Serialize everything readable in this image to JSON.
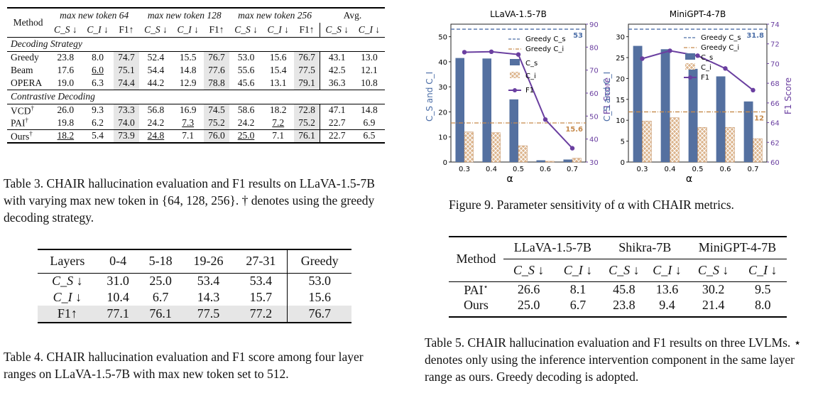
{
  "table3": {
    "header": {
      "method": "Method",
      "groups": [
        "max new token 64",
        "max new token 128",
        "max new token 256",
        "Avg."
      ],
      "cols": [
        "C_S ↓",
        "C_I ↓",
        "F1↑",
        "C_S ↓",
        "C_I ↓",
        "F1↑",
        "C_S ↓",
        "C_I ↓",
        "F1↑",
        "C_S ↓",
        "C_I ↓"
      ]
    },
    "sections": [
      {
        "title": "Decoding Strategy",
        "rows": [
          {
            "method": "Greedy",
            "sup": "",
            "vals": [
              "23.8",
              "8.0",
              "74.7",
              "52.4",
              "15.5",
              "76.7",
              "53.0",
              "15.6",
              "76.7",
              "43.1",
              "13.0"
            ]
          },
          {
            "method": "Beam",
            "sup": "",
            "vals": [
              "17.6",
              "6.0",
              "75.1",
              "54.4",
              "14.8",
              "77.6",
              "55.6",
              "15.4",
              "77.5",
              "42.5",
              "12.1"
            ]
          },
          {
            "method": "OPERA",
            "sup": "",
            "vals": [
              "19.0",
              "6.3",
              "74.4",
              "44.2",
              "12.9",
              "78.8",
              "45.6",
              "13.1",
              "79.1",
              "36.3",
              "10.8"
            ]
          }
        ]
      },
      {
        "title": "Contrastive Decoding",
        "rows": [
          {
            "method": "VCD",
            "sup": "†",
            "vals": [
              "26.0",
              "9.3",
              "73.3",
              "56.8",
              "16.9",
              "74.5",
              "58.6",
              "18.2",
              "72.8",
              "47.1",
              "14.8"
            ]
          },
          {
            "method": "PAI",
            "sup": "†",
            "vals": [
              "19.8",
              "6.2",
              "74.0",
              "24.2",
              "7.3",
              "75.2",
              "24.2",
              "7.2",
              "75.2",
              "22.7",
              "6.9"
            ]
          }
        ]
      }
    ],
    "ours": {
      "method": "Ours",
      "sup": "†",
      "vals": [
        "18.2",
        "5.4",
        "73.9",
        "24.8",
        "7.1",
        "76.0",
        "25.0",
        "7.1",
        "76.1",
        "22.7",
        "6.5"
      ]
    },
    "caption": "Table 3.  CHAIR hallucination evaluation and F1 results on LLaVA-1.5-7B with varying max new token in {64, 128, 256}. † denotes using the greedy decoding strategy."
  },
  "table4": {
    "header": [
      "Layers",
      "0-4",
      "5-18",
      "19-26",
      "27-31",
      "Greedy"
    ],
    "rows": [
      {
        "label": "C_S ↓",
        "vals": [
          "31.0",
          "25.0",
          "53.4",
          "53.4",
          "53.0"
        ]
      },
      {
        "label": "C_I ↓",
        "vals": [
          "10.4",
          "6.7",
          "14.3",
          "15.7",
          "15.6"
        ]
      },
      {
        "label": "F1↑",
        "vals": [
          "77.1",
          "76.1",
          "77.5",
          "77.2",
          "76.7"
        ]
      }
    ],
    "caption": "Table 4. CHAIR hallucination evaluation and F1 score among four layer ranges on LLaVA-1.5-7B with max new token set to 512."
  },
  "figure9": {
    "caption": "Figure 9. Parameter sensitivity of α with CHAIR metrics.",
    "legend": [
      "Greedy C_s",
      "Greedy C_i",
      "C_s",
      "C_i",
      "F1"
    ]
  },
  "table5": {
    "header": {
      "method": "Method",
      "models": [
        "LLaVA-1.5-7B",
        "Shikra-7B",
        "MiniGPT-4-7B"
      ],
      "cols": [
        "C_S ↓",
        "C_I ↓",
        "C_S ↓",
        "C_I ↓",
        "C_S ↓",
        "C_I ↓"
      ]
    },
    "rows": [
      {
        "method": "PAI",
        "sup": "⋆",
        "vals": [
          "26.6",
          "8.1",
          "45.8",
          "13.6",
          "30.2",
          "9.5"
        ]
      },
      {
        "method": "Ours",
        "sup": "",
        "vals": [
          "25.0",
          "6.7",
          "23.8",
          "9.4",
          "21.4",
          "8.0"
        ]
      }
    ],
    "caption": "Table 5.  CHAIR hallucination evaluation and F1 results on three LVLMs. ⋆ denotes only using the inference intervention component in the same layer range as ours. Greedy decoding is adopted."
  },
  "chart_data": [
    {
      "type": "bar",
      "title": "LLaVA-1.5-7B",
      "xlabel": "α",
      "ylabel": "C_S and C_I",
      "y2label": "F1 Score",
      "categories": [
        "0.3",
        "0.4",
        "0.5",
        "0.6",
        "0.7"
      ],
      "series": [
        {
          "name": "C_s",
          "kind": "bar",
          "values": [
            41.5,
            41.3,
            25.0,
            0.7,
            1.0
          ]
        },
        {
          "name": "C_i",
          "kind": "bar",
          "values": [
            12.0,
            11.7,
            6.5,
            0.3,
            1.5
          ]
        },
        {
          "name": "F1",
          "kind": "line",
          "axis": "right",
          "values": [
            77.8,
            78.0,
            76.8,
            48.5,
            36.0
          ]
        }
      ],
      "greedy_cs": 53,
      "greedy_ci": 15.6,
      "greedy_cs_label": "53",
      "greedy_ci_label": "15.6",
      "ylim": [
        0,
        55
      ],
      "y2lim": [
        30,
        90
      ],
      "yticks": [
        "0",
        "10",
        "20",
        "30",
        "40",
        "50"
      ],
      "y2ticks": [
        "30",
        "40",
        "50",
        "60",
        "70",
        "80",
        "90"
      ]
    },
    {
      "type": "bar",
      "title": "MiniGPT-4-7B",
      "xlabel": "α",
      "ylabel": "C_S and C_I",
      "y2label": "F1 Score",
      "categories": [
        "0.3",
        "0.4",
        "0.5",
        "0.6",
        "0.7"
      ],
      "series": [
        {
          "name": "C_s",
          "kind": "bar",
          "values": [
            27.8,
            27.0,
            22.3,
            20.5,
            14.5
          ]
        },
        {
          "name": "C_i",
          "kind": "bar",
          "values": [
            9.8,
            10.6,
            8.3,
            8.3,
            5.6
          ]
        },
        {
          "name": "F1",
          "kind": "line",
          "axis": "right",
          "values": [
            70.5,
            71.3,
            70.8,
            69.5,
            67.3
          ]
        }
      ],
      "greedy_cs": 31.8,
      "greedy_ci": 12,
      "greedy_cs_label": "31.8",
      "greedy_ci_label": "12",
      "ylim": [
        0,
        33
      ],
      "y2lim": [
        60,
        74
      ],
      "yticks": [
        "0",
        "5",
        "10",
        "15",
        "20",
        "25",
        "30"
      ],
      "y2ticks": [
        "60",
        "62",
        "64",
        "66",
        "68",
        "70",
        "72",
        "74"
      ]
    }
  ]
}
